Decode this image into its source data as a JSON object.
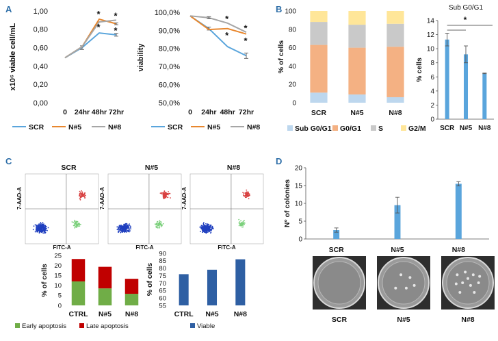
{
  "panels": {
    "a": "A",
    "b": "B",
    "c": "C",
    "d": "D"
  },
  "chart_data": [
    {
      "id": "A1",
      "type": "line",
      "ylabel": "x10⁶ viable cell/mL",
      "categories": [
        "0",
        "24hr",
        "48hr",
        "72hr"
      ],
      "yticks": [
        "0,00",
        "0,20",
        "0,40",
        "0,60",
        "0,80",
        "1,00"
      ],
      "ylim": [
        0,
        1.0
      ],
      "series": [
        {
          "name": "SCR",
          "color": "#5aa5dc",
          "values": [
            0.49,
            0.6,
            0.76,
            0.74
          ],
          "errors": [
            0,
            0.02,
            0,
            0.015
          ]
        },
        {
          "name": "N#5",
          "color": "#e8872e",
          "values": [
            0.49,
            0.61,
            0.91,
            0.86
          ],
          "errors": [
            0,
            0,
            0,
            0.01
          ]
        },
        {
          "name": "N#8",
          "color": "#a6a6a6",
          "values": [
            0.49,
            0.61,
            0.88,
            0.9
          ],
          "errors": [
            0,
            0,
            0,
            0
          ]
        }
      ],
      "annotations": [
        {
          "label": "*",
          "x": "48hr",
          "y": 0.97
        },
        {
          "label": "*",
          "x": "48hr",
          "y": 0.83
        },
        {
          "label": "*",
          "x": "72hr",
          "y": 0.95
        },
        {
          "label": "*",
          "x": "72hr",
          "y": 0.79
        }
      ]
    },
    {
      "id": "A2",
      "type": "line",
      "ylabel": "viability",
      "categories": [
        "0",
        "24hr",
        "48hr",
        "72hr"
      ],
      "yticks": [
        "50,0%",
        "60,0%",
        "70,0%",
        "80,0%",
        "90,0%",
        "100,0%"
      ],
      "ylim": [
        50,
        100
      ],
      "series": [
        {
          "name": "SCR",
          "color": "#5aa5dc",
          "values": [
            98,
            91,
            81,
            76
          ],
          "errors": [
            0,
            0.8,
            0,
            1.5
          ]
        },
        {
          "name": "N#5",
          "color": "#e8872e",
          "values": [
            98,
            90.5,
            91,
            88
          ],
          "errors": [
            0,
            0,
            0,
            0
          ]
        },
        {
          "name": "N#8",
          "color": "#a6a6a6",
          "values": [
            98,
            97,
            94,
            89
          ],
          "errors": [
            0,
            0.6,
            0,
            0
          ]
        }
      ],
      "annotations": [
        {
          "label": "*",
          "x": "48hr",
          "y": 96.5
        },
        {
          "label": "*",
          "x": "48hr",
          "y": 87.5
        },
        {
          "label": "*",
          "x": "72hr",
          "y": 91.5
        },
        {
          "label": "*",
          "x": "72hr",
          "y": 84.5
        }
      ]
    },
    {
      "id": "B1",
      "type": "bar",
      "ylabel": "% of cells",
      "categories": [
        "SCR",
        "N#5",
        "N#8"
      ],
      "yticks": [
        "0",
        "20",
        "40",
        "60",
        "80",
        "100"
      ],
      "ylim": [
        0,
        100
      ],
      "stacked": true,
      "series": [
        {
          "name": "Sub G0/G1",
          "color": "#bdd7ee",
          "values": [
            11,
            9,
            6
          ]
        },
        {
          "name": "G0/G1",
          "color": "#f4b183",
          "values": [
            52,
            51,
            55
          ]
        },
        {
          "name": "S",
          "color": "#c9c9c9",
          "values": [
            25,
            25,
            25
          ]
        },
        {
          "name": "G2/M",
          "color": "#ffe699",
          "values": [
            12,
            15,
            14
          ]
        }
      ]
    },
    {
      "id": "B2",
      "type": "bar",
      "title": "Sub G0/G1",
      "ylabel": "% cells",
      "categories": [
        "SCR",
        "N#5",
        "N#8"
      ],
      "yticks": [
        "0",
        "2",
        "4",
        "6",
        "8",
        "10",
        "12",
        "14"
      ],
      "ylim": [
        0,
        14
      ],
      "series": [
        {
          "color": "#5aa5dc",
          "values": [
            11.3,
            9.2,
            6.5
          ],
          "errors": [
            0.9,
            1.2,
            0.05
          ]
        }
      ],
      "annotations": [
        {
          "label": "*"
        }
      ]
    },
    {
      "id": "C1",
      "type": "bar",
      "ylabel": "% of cells",
      "categories": [
        "CTRL",
        "N#5",
        "N#8"
      ],
      "yticks": [
        "0",
        "5",
        "10",
        "15",
        "20",
        "25"
      ],
      "ylim": [
        0,
        25
      ],
      "stacked": true,
      "series": [
        {
          "name": "Early apoptosis",
          "color": "#70ad47",
          "values": [
            12,
            8.5,
            5.8
          ]
        },
        {
          "name": "Late apoptosis",
          "color": "#c00000",
          "values": [
            11.2,
            10.8,
            7.5
          ]
        }
      ]
    },
    {
      "id": "C2",
      "type": "bar",
      "ylabel": "% of cells",
      "categories": [
        "CTRL",
        "N#5",
        "N#8"
      ],
      "yticks": [
        "55",
        "60",
        "65",
        "70",
        "75",
        "80",
        "85",
        "90"
      ],
      "ylim": [
        55,
        90
      ],
      "series": [
        {
          "name": "Viable",
          "color": "#2e5fa3",
          "values": [
            76,
            79,
            86
          ]
        }
      ]
    },
    {
      "id": "D1",
      "type": "bar",
      "ylabel": "N° of colonies",
      "categories": [
        "SCR",
        "N#5",
        "N#8"
      ],
      "yticks": [
        "0",
        "5",
        "10",
        "15",
        "20"
      ],
      "ylim": [
        0,
        20
      ],
      "series": [
        {
          "color": "#5aa5dc",
          "values": [
            2.5,
            9.5,
            15.5
          ],
          "errors": [
            0.6,
            2.2,
            0.6
          ]
        }
      ]
    }
  ],
  "legends": {
    "a": [
      {
        "name": "SCR",
        "color": "#5aa5dc"
      },
      {
        "name": "N#5",
        "color": "#e8872e"
      },
      {
        "name": "N#8",
        "color": "#a6a6a6"
      }
    ]
  },
  "flow": {
    "panels": [
      {
        "title": "SCR",
        "ylabel": "7-AAD-A",
        "xlabel": "FITC-A"
      },
      {
        "title": "N#5",
        "ylabel": "7-AAD-A",
        "xlabel": "FITC-A"
      },
      {
        "title": "N#8",
        "ylabel": "7-AAD-A",
        "xlabel": "FITC-A"
      }
    ]
  },
  "plates": {
    "labels": [
      "SCR",
      "N#5",
      "N#8"
    ]
  }
}
